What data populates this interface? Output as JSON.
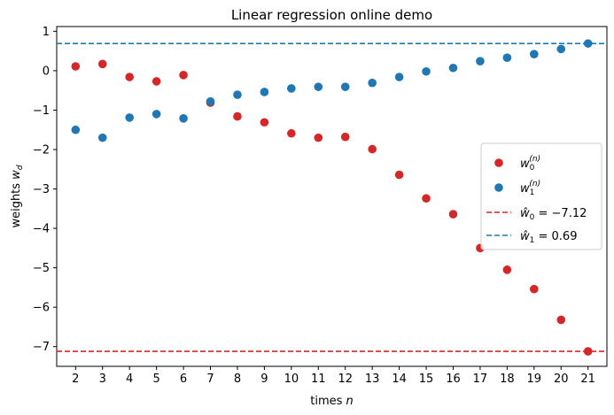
{
  "chart_data": {
    "type": "scatter",
    "title": "Linear regression online demo",
    "xlabel_text": "times ",
    "xlabel_var": "n",
    "ylabel_text": "weights ",
    "ylabel_var": "w",
    "ylabel_sub": "d",
    "xlim": [
      1.3,
      21.7
    ],
    "ylim": [
      -7.5,
      1.12
    ],
    "xticks": [
      2,
      3,
      4,
      5,
      6,
      7,
      8,
      9,
      10,
      11,
      12,
      13,
      14,
      15,
      16,
      17,
      18,
      19,
      20,
      21
    ],
    "yticks": [
      1,
      0,
      -1,
      -2,
      -3,
      -4,
      -5,
      -6,
      -7
    ],
    "grid": false,
    "legend_position": "center-right",
    "series": [
      {
        "name_base": "w",
        "name_sub": "0",
        "name_sup": "(n)",
        "color": "#d62728",
        "x": [
          2,
          3,
          4,
          5,
          6,
          7,
          8,
          9,
          10,
          11,
          12,
          13,
          14,
          15,
          16,
          17,
          18,
          19,
          20,
          21
        ],
        "y": [
          0.11,
          0.17,
          -0.16,
          -0.27,
          -0.11,
          -0.81,
          -1.16,
          -1.31,
          -1.59,
          -1.7,
          -1.68,
          -1.99,
          -2.64,
          -3.24,
          -3.64,
          -4.5,
          -5.05,
          -5.54,
          -6.32,
          -7.12
        ]
      },
      {
        "name_base": "w",
        "name_sub": "1",
        "name_sup": "(n)",
        "color": "#1f77b4",
        "x": [
          2,
          3,
          4,
          5,
          6,
          7,
          8,
          9,
          10,
          11,
          12,
          13,
          14,
          15,
          16,
          17,
          18,
          19,
          20,
          21
        ],
        "y": [
          -1.5,
          -1.7,
          -1.19,
          -1.1,
          -1.21,
          -0.78,
          -0.61,
          -0.54,
          -0.45,
          -0.41,
          -0.41,
          -0.31,
          -0.16,
          -0.02,
          0.07,
          0.24,
          0.33,
          0.42,
          0.55,
          0.69
        ]
      }
    ],
    "hlines": [
      {
        "label_prefix": "ŵ",
        "label_sub": "0",
        "label_value": " = −7.12",
        "y": -7.12,
        "color": "#d62728",
        "style": "dashed"
      },
      {
        "label_prefix": "ŵ",
        "label_sub": "1",
        "label_value": " = 0.69",
        "y": 0.69,
        "color": "#1f77b4",
        "style": "dashed"
      }
    ]
  }
}
